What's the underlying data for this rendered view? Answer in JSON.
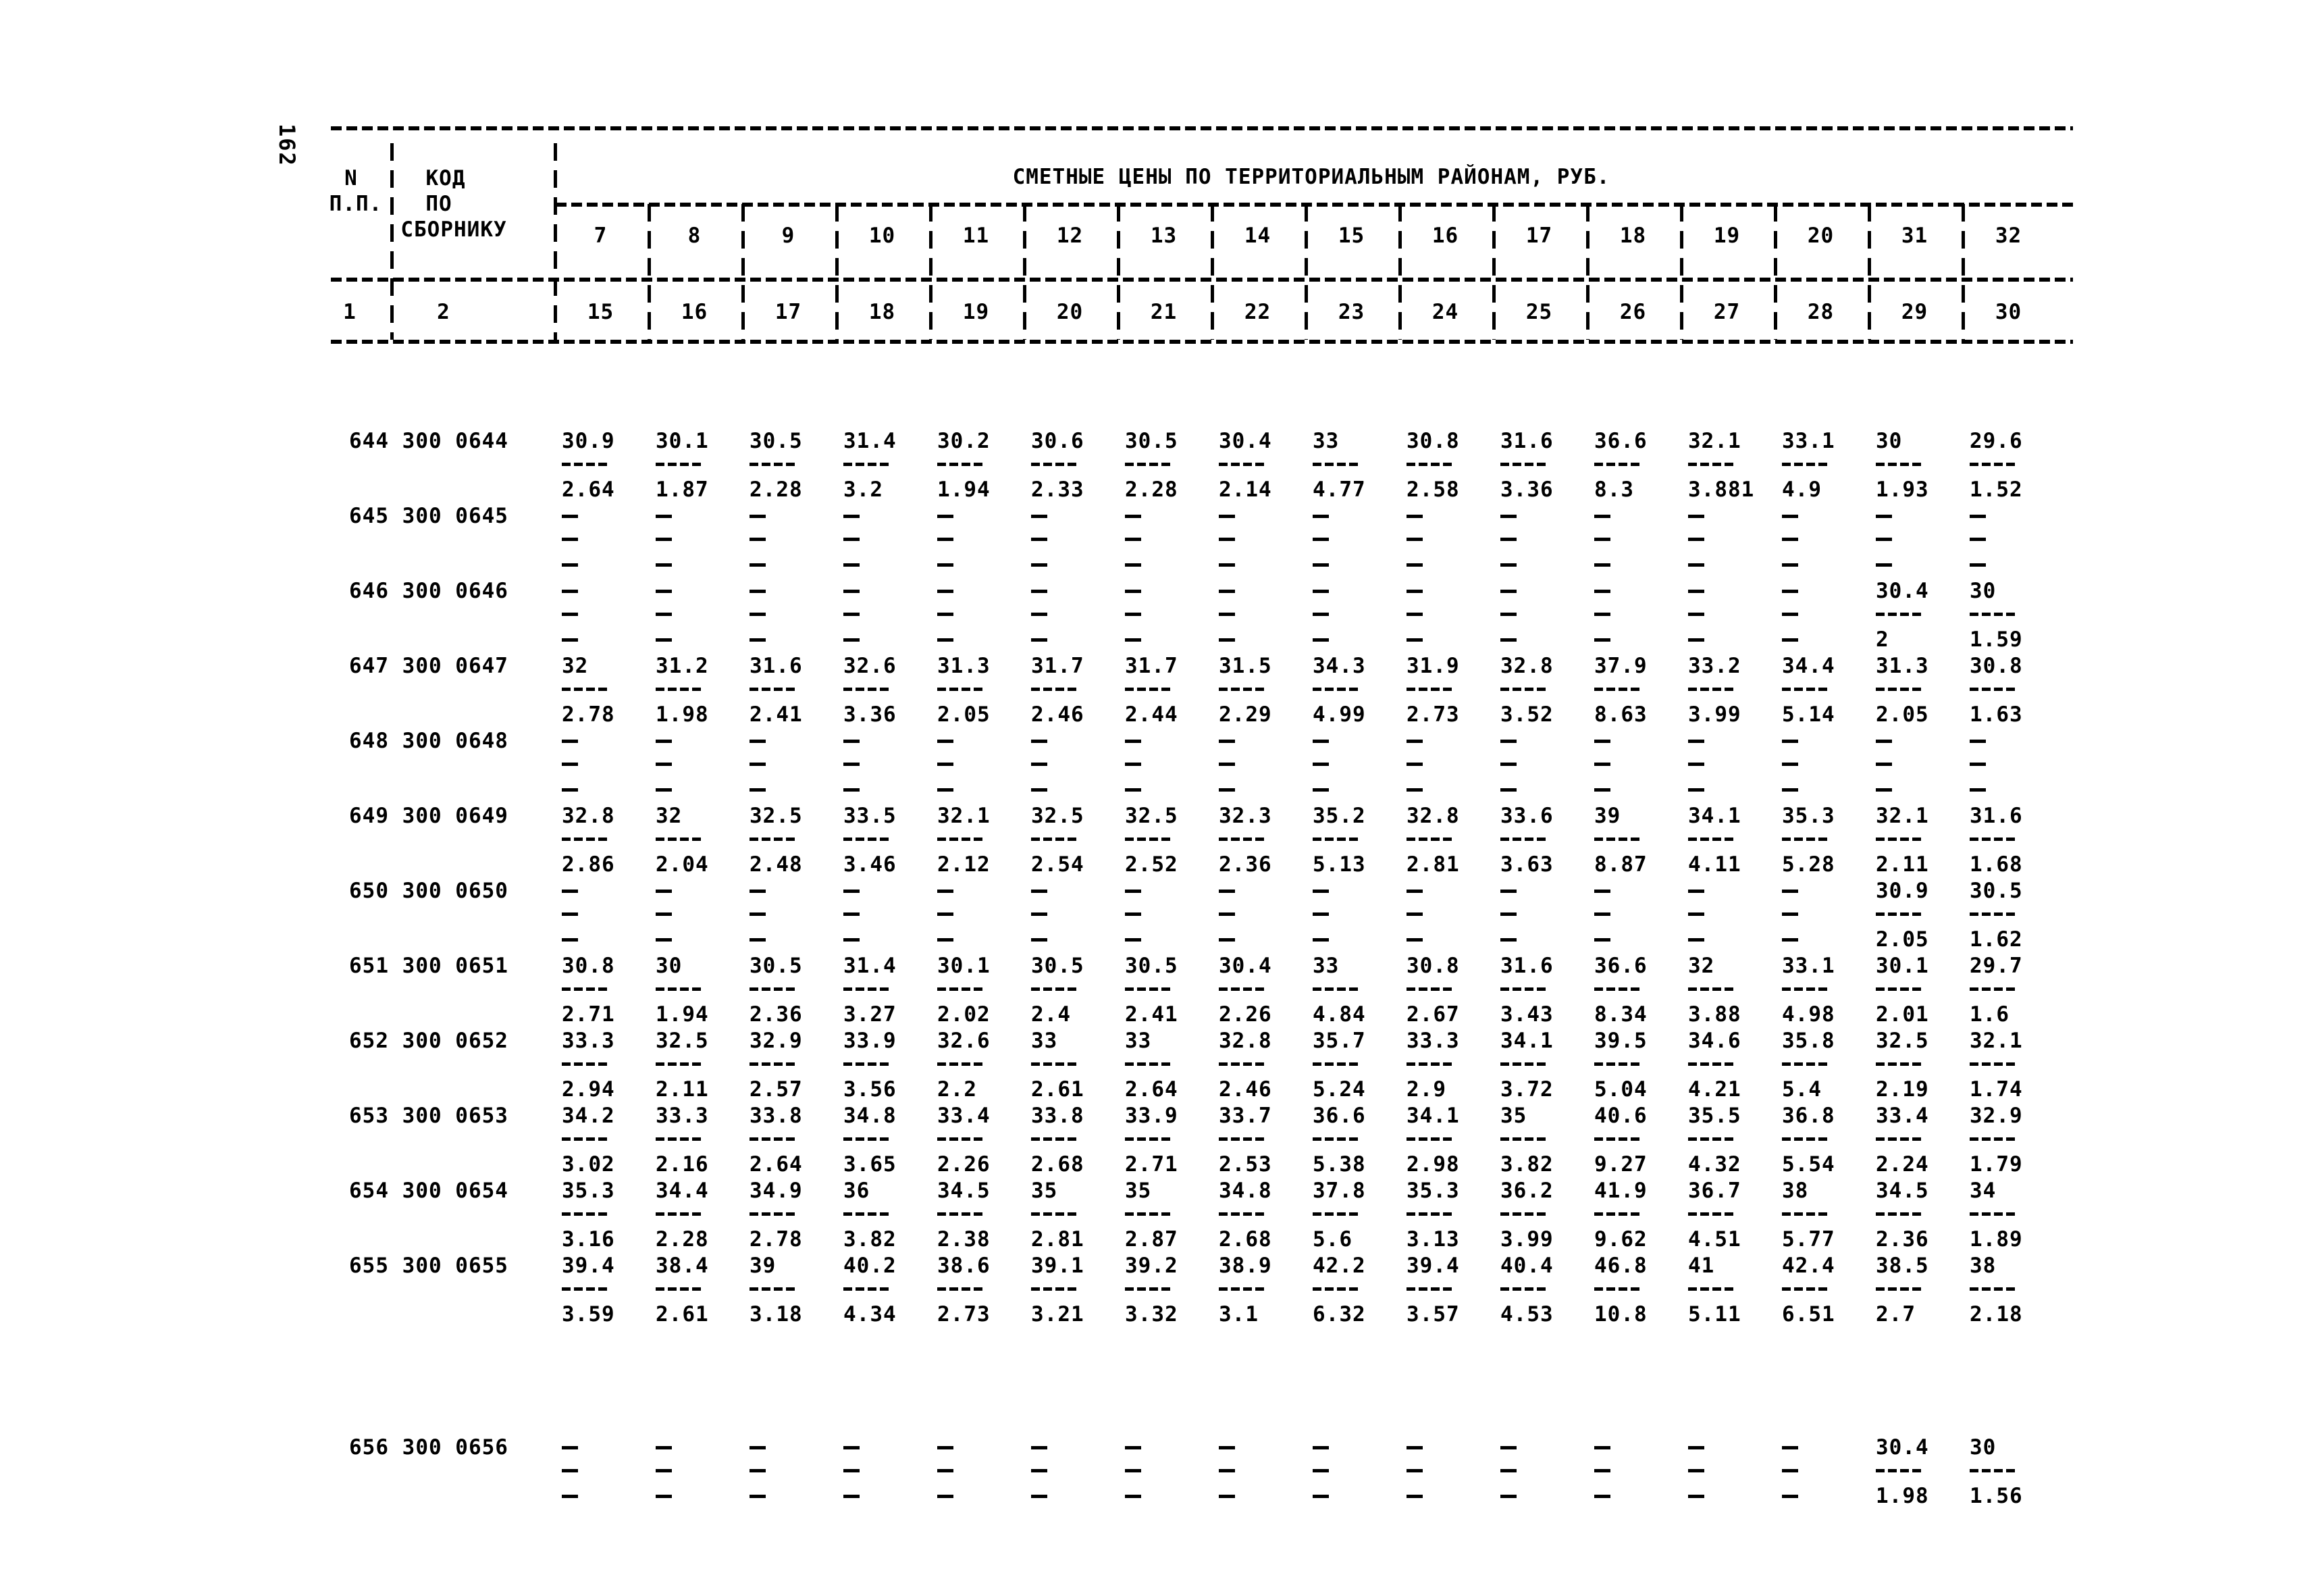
{
  "page": {
    "number": "162"
  },
  "table": {
    "header": {
      "col1_lines": [
        "N",
        "П.П."
      ],
      "col2_lines": [
        "КОД",
        "ПО",
        "СБОРНИКУ"
      ],
      "price_title": "СМЕТНЫЕ ЦЕНЫ ПО ТЕРРИТОРИАЛЬНЫМ РАЙОНАМ, РУБ.",
      "district_columns": [
        "7",
        "8",
        "9",
        "10",
        "11",
        "12",
        "13",
        "14",
        "15",
        "16",
        "17",
        "18",
        "19",
        "20",
        "31",
        "32"
      ],
      "index_col1": "1",
      "index_col2": "2",
      "index_columns": [
        "15",
        "16",
        "17",
        "18",
        "19",
        "20",
        "21",
        "22",
        "23",
        "24",
        "25",
        "26",
        "27",
        "28",
        "29",
        "30"
      ]
    },
    "rows": [
      {
        "n": "644",
        "code": "300 0644",
        "top": [
          "30.9",
          "30.1",
          "30.5",
          "31.4",
          "30.2",
          "30.6",
          "30.5",
          "30.4",
          "33",
          "30.8",
          "31.6",
          "36.6",
          "32.1",
          "33.1",
          "30",
          "29.6"
        ],
        "bottom": [
          "2.64",
          "1.87",
          "2.28",
          "3.2",
          "1.94",
          "2.33",
          "2.28",
          "2.14",
          "4.77",
          "2.58",
          "3.36",
          "8.3",
          "3.881",
          "4.9",
          "1.93",
          "1.52"
        ]
      },
      {
        "n": "645",
        "code": "300 0645",
        "top": [
          "-",
          "-",
          "-",
          "-",
          "-",
          "-",
          "-",
          "-",
          "-",
          "-",
          "-",
          "-",
          "-",
          "-",
          "-",
          "-"
        ],
        "bottom": [
          "-",
          "-",
          "-",
          "-",
          "-",
          "-",
          "-",
          "-",
          "-",
          "-",
          "-",
          "-",
          "-",
          "-",
          "-",
          "-"
        ]
      },
      {
        "n": "646",
        "code": "300 0646",
        "top": [
          "-",
          "-",
          "-",
          "-",
          "-",
          "-",
          "-",
          "-",
          "-",
          "-",
          "-",
          "-",
          "-",
          "-",
          "30.4",
          "30"
        ],
        "bottom": [
          "-",
          "-",
          "-",
          "-",
          "-",
          "-",
          "-",
          "-",
          "-",
          "-",
          "-",
          "-",
          "-",
          "-",
          "2",
          "1.59"
        ]
      },
      {
        "n": "647",
        "code": "300 0647",
        "top": [
          "32",
          "31.2",
          "31.6",
          "32.6",
          "31.3",
          "31.7",
          "31.7",
          "31.5",
          "34.3",
          "31.9",
          "32.8",
          "37.9",
          "33.2",
          "34.4",
          "31.3",
          "30.8"
        ],
        "bottom": [
          "2.78",
          "1.98",
          "2.41",
          "3.36",
          "2.05",
          "2.46",
          "2.44",
          "2.29",
          "4.99",
          "2.73",
          "3.52",
          "8.63",
          "3.99",
          "5.14",
          "2.05",
          "1.63"
        ]
      },
      {
        "n": "648",
        "code": "300 0648",
        "top": [
          "-",
          "-",
          "-",
          "-",
          "-",
          "-",
          "-",
          "-",
          "-",
          "-",
          "-",
          "-",
          "-",
          "-",
          "-",
          "-"
        ],
        "bottom": [
          "-",
          "-",
          "-",
          "-",
          "-",
          "-",
          "-",
          "-",
          "-",
          "-",
          "-",
          "-",
          "-",
          "-",
          "-",
          "-"
        ]
      },
      {
        "n": "649",
        "code": "300 0649",
        "top": [
          "32.8",
          "32",
          "32.5",
          "33.5",
          "32.1",
          "32.5",
          "32.5",
          "32.3",
          "35.2",
          "32.8",
          "33.6",
          "39",
          "34.1",
          "35.3",
          "32.1",
          "31.6"
        ],
        "bottom": [
          "2.86",
          "2.04",
          "2.48",
          "3.46",
          "2.12",
          "2.54",
          "2.52",
          "2.36",
          "5.13",
          "2.81",
          "3.63",
          "8.87",
          "4.11",
          "5.28",
          "2.11",
          "1.68"
        ]
      },
      {
        "n": "650",
        "code": "300 0650",
        "top": [
          "-",
          "-",
          "-",
          "-",
          "-",
          "-",
          "-",
          "-",
          "-",
          "-",
          "-",
          "-",
          "-",
          "-",
          "30.9",
          "30.5"
        ],
        "bottom": [
          "-",
          "-",
          "-",
          "-",
          "-",
          "-",
          "-",
          "-",
          "-",
          "-",
          "-",
          "-",
          "-",
          "-",
          "2.05",
          "1.62"
        ]
      },
      {
        "n": "651",
        "code": "300 0651",
        "top": [
          "30.8",
          "30",
          "30.5",
          "31.4",
          "30.1",
          "30.5",
          "30.5",
          "30.4",
          "33",
          "30.8",
          "31.6",
          "36.6",
          "32",
          "33.1",
          "30.1",
          "29.7"
        ],
        "bottom": [
          "2.71",
          "1.94",
          "2.36",
          "3.27",
          "2.02",
          "2.4",
          "2.41",
          "2.26",
          "4.84",
          "2.67",
          "3.43",
          "8.34",
          "3.88",
          "4.98",
          "2.01",
          "1.6"
        ]
      },
      {
        "n": "652",
        "code": "300 0652",
        "top": [
          "33.3",
          "32.5",
          "32.9",
          "33.9",
          "32.6",
          "33",
          "33",
          "32.8",
          "35.7",
          "33.3",
          "34.1",
          "39.5",
          "34.6",
          "35.8",
          "32.5",
          "32.1"
        ],
        "bottom": [
          "2.94",
          "2.11",
          "2.57",
          "3.56",
          "2.2",
          "2.61",
          "2.64",
          "2.46",
          "5.24",
          "2.9",
          "3.72",
          "5.04",
          "4.21",
          "5.4",
          "2.19",
          "1.74"
        ]
      },
      {
        "n": "653",
        "code": "300 0653",
        "top": [
          "34.2",
          "33.3",
          "33.8",
          "34.8",
          "33.4",
          "33.8",
          "33.9",
          "33.7",
          "36.6",
          "34.1",
          "35",
          "40.6",
          "35.5",
          "36.8",
          "33.4",
          "32.9"
        ],
        "bottom": [
          "3.02",
          "2.16",
          "2.64",
          "3.65",
          "2.26",
          "2.68",
          "2.71",
          "2.53",
          "5.38",
          "2.98",
          "3.82",
          "9.27",
          "4.32",
          "5.54",
          "2.24",
          "1.79"
        ]
      },
      {
        "n": "654",
        "code": "300 0654",
        "top": [
          "35.3",
          "34.4",
          "34.9",
          "36",
          "34.5",
          "35",
          "35",
          "34.8",
          "37.8",
          "35.3",
          "36.2",
          "41.9",
          "36.7",
          "38",
          "34.5",
          "34"
        ],
        "bottom": [
          "3.16",
          "2.28",
          "2.78",
          "3.82",
          "2.38",
          "2.81",
          "2.87",
          "2.68",
          "5.6",
          "3.13",
          "3.99",
          "9.62",
          "4.51",
          "5.77",
          "2.36",
          "1.89"
        ]
      },
      {
        "n": "655",
        "code": "300 0655",
        "top": [
          "39.4",
          "38.4",
          "39",
          "40.2",
          "38.6",
          "39.1",
          "39.2",
          "38.9",
          "42.2",
          "39.4",
          "40.4",
          "46.8",
          "41",
          "42.4",
          "38.5",
          "38"
        ],
        "bottom": [
          "3.59",
          "2.61",
          "3.18",
          "4.34",
          "2.73",
          "3.21",
          "3.32",
          "3.1",
          "6.32",
          "3.57",
          "4.53",
          "10.8",
          "5.11",
          "6.51",
          "2.7",
          "2.18"
        ]
      },
      {
        "n": "656",
        "code": "300 0656",
        "gap_before": true,
        "top": [
          "-",
          "-",
          "-",
          "-",
          "-",
          "-",
          "-",
          "-",
          "-",
          "-",
          "-",
          "-",
          "-",
          "-",
          "30.4",
          "30"
        ],
        "bottom": [
          "-",
          "-",
          "-",
          "-",
          "-",
          "-",
          "-",
          "-",
          "-",
          "-",
          "-",
          "-",
          "-",
          "-",
          "1.98",
          "1.56"
        ]
      }
    ]
  }
}
